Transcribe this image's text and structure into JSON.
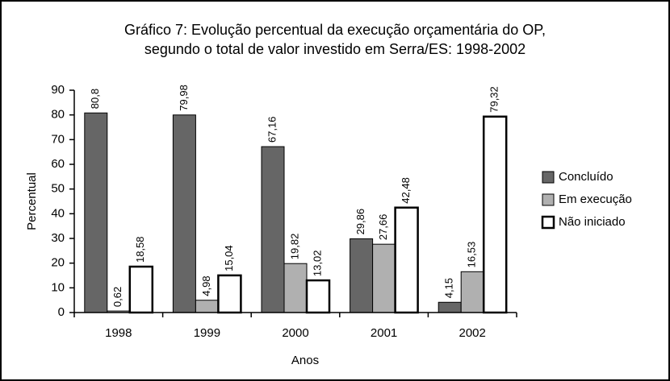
{
  "chart_data": {
    "type": "bar",
    "title": [
      "Gráfico 7: Evolução percentual da execução orçamentária do OP,",
      "segundo o total de valor investido em Serra/ES: 1998-2002"
    ],
    "x_label": "Anos",
    "y_label": "Percentual",
    "categories": [
      "1998",
      "1999",
      "2000",
      "2001",
      "2002"
    ],
    "series": [
      {
        "name": "Concluído",
        "color": "#666666",
        "values": [
          80.8,
          79.98,
          67.16,
          29.86,
          4.15
        ],
        "value_labels": [
          "80,8",
          "79,98",
          "67,16",
          "29,86",
          "4,15"
        ]
      },
      {
        "name": "Em execução",
        "color": "#b0b0b0",
        "values": [
          0.62,
          4.98,
          19.82,
          27.66,
          16.53
        ],
        "value_labels": [
          "0,62",
          "4,98",
          "19,82",
          "27,66",
          "16,53"
        ]
      },
      {
        "name": "Não iniciado",
        "color": "#ffffff",
        "values": [
          18.58,
          15.04,
          13.02,
          42.48,
          79.32
        ],
        "value_labels": [
          "18,58",
          "15,04",
          "13,02",
          "42,48",
          "79,32"
        ]
      }
    ],
    "ylim": [
      0,
      90
    ],
    "yticks": [
      0,
      10,
      20,
      30,
      40,
      50,
      60,
      70,
      80,
      90
    ],
    "grid": false,
    "legend": "right"
  }
}
